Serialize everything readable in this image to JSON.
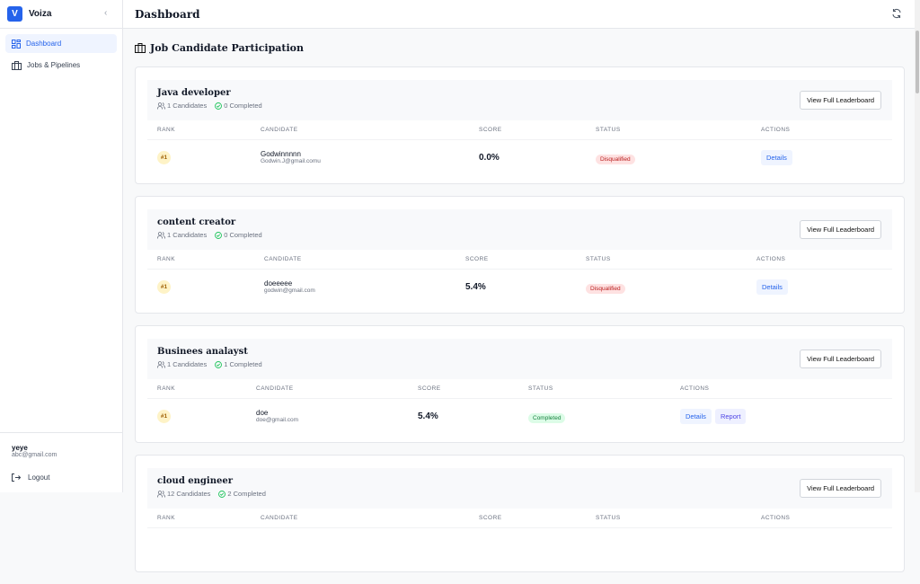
{
  "app": {
    "name": "Voiza",
    "logo": "V"
  },
  "sidebar": {
    "items": [
      {
        "label": "Dashboard",
        "icon": "dashboard-icon",
        "active": true
      },
      {
        "label": "Jobs & Pipelines",
        "icon": "briefcase-icon"
      }
    ],
    "user": {
      "name": "yeye",
      "email": "abc@gmail.com"
    },
    "logout": "Logout"
  },
  "header": {
    "title": "Dashboard"
  },
  "section": {
    "title": "Job Candidate Participation"
  },
  "columns": [
    "RANK",
    "CANDIDATE",
    "SCORE",
    "STATUS",
    "ACTIONS"
  ],
  "view_label": "View Full Leaderboard",
  "jobs": [
    {
      "title": "Java developer",
      "candidates": "1 Candidates",
      "completed": "0 Completed",
      "rows": [
        {
          "rank": "#1",
          "name": "Godwinnnnn",
          "email": "Godwin.J@gmail.comu",
          "score": "0.0%",
          "status": "Disqualified",
          "actions": [
            "Details"
          ]
        }
      ]
    },
    {
      "title": "content creator",
      "candidates": "1 Candidates",
      "completed": "0 Completed",
      "rows": [
        {
          "rank": "#1",
          "name": "doeeeee",
          "email": "godwin@gmail.com",
          "score": "5.4%",
          "status": "Disqualified",
          "actions": [
            "Details"
          ]
        }
      ]
    },
    {
      "title": "Businees analayst",
      "candidates": "1 Candidates",
      "completed": "1 Completed",
      "rows": [
        {
          "rank": "#1",
          "name": "doe",
          "email": "doe@gmail.com",
          "score": "5.4%",
          "status": "Completed",
          "actions": [
            "Details",
            "Report"
          ]
        }
      ]
    },
    {
      "title": "cloud engineer",
      "candidates": "12 Candidates",
      "completed": "2 Completed",
      "rows": []
    }
  ],
  "colors": {
    "accent": "#2563eb",
    "disqualified": "#b91c1c",
    "completed": "#15803d"
  }
}
